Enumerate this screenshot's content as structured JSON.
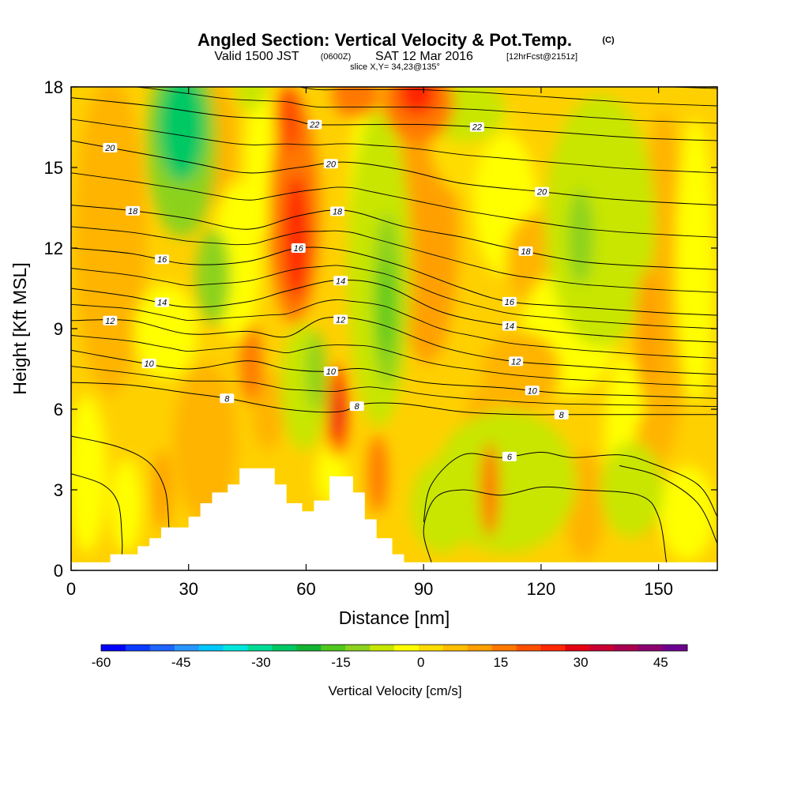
{
  "title": {
    "main": "Angled Section: Vertical Velocity & Pot.Temp.",
    "main_suffix": "(C)",
    "valid": "Valid 1500 JST",
    "valid_utc": "(0600Z)",
    "valid_date": "SAT 12 Mar 2016",
    "forecast": "[12hrFcst@2151z]",
    "slice": "slice X,Y= 34,23@135°"
  },
  "chart_data": {
    "type": "heatmap",
    "xlabel": "Distance [nm]",
    "ylabel": "Height [Kft MSL]",
    "xlim": [
      0,
      165
    ],
    "ylim": [
      0,
      18
    ],
    "x_ticks": [
      "0",
      "30",
      "60",
      "90",
      "120",
      "150"
    ],
    "x_tick_values": [
      0,
      30,
      60,
      90,
      120,
      150
    ],
    "y_ticks": [
      "0",
      "3",
      "6",
      "9",
      "12",
      "15",
      "18"
    ],
    "y_tick_values": [
      0,
      3,
      6,
      9,
      12,
      15,
      18
    ],
    "terrain": [
      [
        0,
        0.3
      ],
      [
        10,
        0.3
      ],
      [
        10,
        0.6
      ],
      [
        17,
        0.6
      ],
      [
        17,
        0.9
      ],
      [
        20,
        0.9
      ],
      [
        20,
        1.2
      ],
      [
        23,
        1.2
      ],
      [
        23,
        1.6
      ],
      [
        30,
        1.6
      ],
      [
        30,
        2.0
      ],
      [
        33,
        2.0
      ],
      [
        33,
        2.5
      ],
      [
        36,
        2.5
      ],
      [
        36,
        2.9
      ],
      [
        40,
        2.9
      ],
      [
        40,
        3.2
      ],
      [
        43,
        3.2
      ],
      [
        43,
        3.8
      ],
      [
        52,
        3.8
      ],
      [
        52,
        3.2
      ],
      [
        55,
        3.2
      ],
      [
        55,
        2.5
      ],
      [
        59,
        2.5
      ],
      [
        59,
        2.2
      ],
      [
        62,
        2.2
      ],
      [
        62,
        2.6
      ],
      [
        66,
        2.6
      ],
      [
        66,
        3.5
      ],
      [
        72,
        3.5
      ],
      [
        72,
        2.9
      ],
      [
        75,
        2.9
      ],
      [
        75,
        1.9
      ],
      [
        78,
        1.9
      ],
      [
        78,
        1.2
      ],
      [
        82,
        1.2
      ],
      [
        82,
        0.6
      ],
      [
        85,
        0.6
      ],
      [
        85,
        0.3
      ],
      [
        165,
        0.3
      ]
    ],
    "w_cells": [
      {
        "x": 0,
        "z": 0,
        "w_cm_s": 3
      },
      {
        "x": 30,
        "z": 1,
        "w_cm_s": 15
      },
      {
        "x": 57,
        "z": 12,
        "w_cm_s": 30
      },
      {
        "x": 68,
        "z": 6,
        "w_cm_s": 32
      },
      {
        "x": 90,
        "z": 17.5,
        "w_cm_s": 30
      },
      {
        "x": 30,
        "z": 16,
        "w_cm_s": -25
      },
      {
        "x": 35,
        "z": 11,
        "w_cm_s": -15
      },
      {
        "x": 80,
        "z": 10.5,
        "w_cm_s": -20
      },
      {
        "x": 130,
        "z": 13,
        "w_cm_s": -15
      },
      {
        "x": 107,
        "z": 3,
        "w_cm_s": 25
      },
      {
        "x": 155,
        "z": 12,
        "w_cm_s": 10
      }
    ],
    "theta_contours": [
      {
        "value": 6,
        "label": "6",
        "points": [
          [
            90,
            1.8
          ],
          [
            92,
            3.2
          ],
          [
            100,
            4.3
          ],
          [
            110,
            4.2
          ],
          [
            120,
            4.4
          ],
          [
            128,
            4.2
          ],
          [
            140,
            4.3
          ],
          [
            148,
            4.0
          ],
          [
            160,
            3.2
          ],
          [
            165,
            2.0
          ]
        ]
      },
      {
        "value": 8,
        "label": "8",
        "points": [
          [
            0,
            7.0
          ],
          [
            15,
            6.9
          ],
          [
            30,
            6.6
          ],
          [
            40,
            6.4
          ],
          [
            55,
            6.0
          ],
          [
            68,
            5.9
          ],
          [
            75,
            6.2
          ],
          [
            85,
            6.2
          ],
          [
            100,
            5.9
          ],
          [
            115,
            5.8
          ],
          [
            125,
            5.8
          ],
          [
            140,
            5.8
          ],
          [
            165,
            5.8
          ]
        ]
      },
      {
        "value": 10,
        "label": "10",
        "points": [
          [
            0,
            8.2
          ],
          [
            15,
            7.8
          ],
          [
            30,
            7.5
          ],
          [
            45,
            7.8
          ],
          [
            55,
            7.5
          ],
          [
            65,
            7.4
          ],
          [
            75,
            7.5
          ],
          [
            90,
            7.0
          ],
          [
            110,
            6.8
          ],
          [
            125,
            6.6
          ],
          [
            145,
            6.5
          ],
          [
            165,
            6.4
          ]
        ]
      },
      {
        "value": 12,
        "label": "12",
        "points": [
          [
            0,
            9.3
          ],
          [
            15,
            9.3
          ],
          [
            30,
            8.8
          ],
          [
            45,
            8.9
          ],
          [
            55,
            8.7
          ],
          [
            65,
            9.4
          ],
          [
            78,
            9.2
          ],
          [
            95,
            8.3
          ],
          [
            112,
            7.8
          ],
          [
            130,
            7.6
          ],
          [
            150,
            7.4
          ],
          [
            165,
            7.3
          ]
        ]
      },
      {
        "value": 14,
        "label": "14",
        "points": [
          [
            0,
            10.5
          ],
          [
            15,
            10.2
          ],
          [
            30,
            9.8
          ],
          [
            45,
            10.0
          ],
          [
            55,
            10.4
          ],
          [
            68,
            10.8
          ],
          [
            80,
            10.6
          ],
          [
            95,
            9.6
          ],
          [
            112,
            9.1
          ],
          [
            130,
            8.8
          ],
          [
            150,
            8.6
          ],
          [
            165,
            8.5
          ]
        ]
      },
      {
        "value": 16,
        "label": "16",
        "points": [
          [
            0,
            12.0
          ],
          [
            15,
            11.8
          ],
          [
            30,
            11.4
          ],
          [
            45,
            11.5
          ],
          [
            58,
            12.0
          ],
          [
            70,
            11.9
          ],
          [
            85,
            11.3
          ],
          [
            100,
            10.5
          ],
          [
            112,
            10.0
          ],
          [
            130,
            9.8
          ],
          [
            150,
            9.6
          ],
          [
            165,
            9.5
          ]
        ]
      },
      {
        "value": 18,
        "label": "18",
        "points": [
          [
            0,
            13.6
          ],
          [
            15,
            13.4
          ],
          [
            30,
            13.1
          ],
          [
            45,
            12.7
          ],
          [
            58,
            13.2
          ],
          [
            70,
            13.4
          ],
          [
            85,
            12.8
          ],
          [
            100,
            12.4
          ],
          [
            112,
            12.0
          ],
          [
            130,
            11.5
          ],
          [
            150,
            11.3
          ],
          [
            165,
            11.2
          ]
        ]
      },
      {
        "value": 20,
        "label": "20",
        "points": [
          [
            0,
            16.0
          ],
          [
            15,
            15.6
          ],
          [
            30,
            15.2
          ],
          [
            45,
            14.8
          ],
          [
            58,
            15.0
          ],
          [
            70,
            15.2
          ],
          [
            85,
            14.9
          ],
          [
            100,
            14.4
          ],
          [
            120,
            14.1
          ],
          [
            140,
            13.8
          ],
          [
            165,
            13.6
          ]
        ]
      },
      {
        "value": 22,
        "label": "22",
        "points": [
          [
            0,
            17.6
          ],
          [
            20,
            17.3
          ],
          [
            40,
            16.9
          ],
          [
            55,
            16.8
          ],
          [
            62,
            16.6
          ],
          [
            75,
            16.6
          ],
          [
            90,
            16.6
          ],
          [
            105,
            16.5
          ],
          [
            125,
            16.3
          ],
          [
            145,
            16.1
          ],
          [
            165,
            16.0
          ]
        ]
      }
    ],
    "extra_contour_lines": 8
  },
  "colorbar": {
    "label": "Vertical Velocity [cm/s]",
    "ticks": [
      "-60",
      "-45",
      "-30",
      "-15",
      "0",
      "15",
      "30",
      "45"
    ],
    "tick_values": [
      -60,
      -45,
      -30,
      -15,
      0,
      15,
      30,
      45
    ],
    "min": -60,
    "max": 50,
    "step": 5,
    "colors": [
      "#0000ff",
      "#0a3cff",
      "#1e64ff",
      "#2896ff",
      "#00c8ff",
      "#00e6dc",
      "#00dc96",
      "#00c864",
      "#14b432",
      "#50c81e",
      "#8cd21e",
      "#c8e600",
      "#ffff00",
      "#ffdc00",
      "#ffbe00",
      "#ffa000",
      "#ff7800",
      "#ff5000",
      "#ff2800",
      "#e60014",
      "#c80032",
      "#aa0050",
      "#8c0070",
      "#6e0090"
    ]
  },
  "colors": {
    "terrain": "#ffffff",
    "contour": "#000000",
    "frame": "#000000"
  }
}
